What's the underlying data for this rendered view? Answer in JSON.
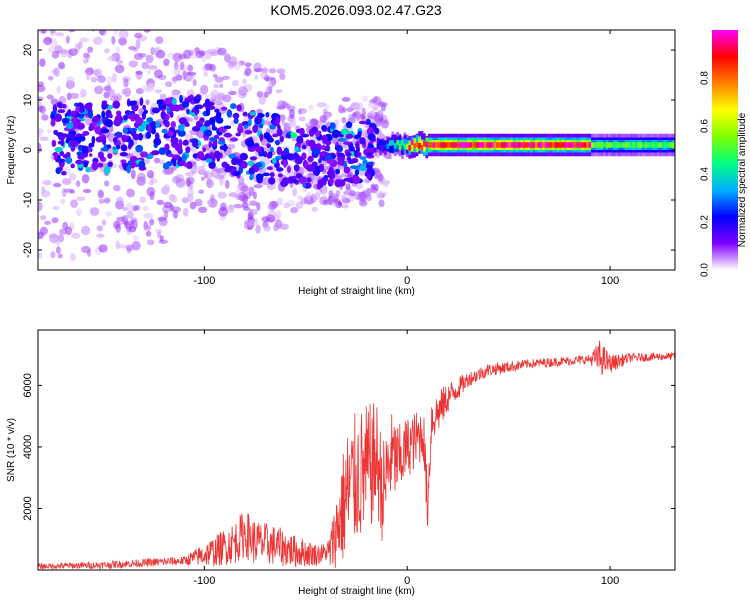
{
  "title": "KOM5.2026.093.02.47.G23",
  "chart_data": [
    {
      "type": "heatmap",
      "title": "KOM5.2026.093.02.47.G23",
      "xlabel": "Height of straight line (km)",
      "ylabel": "Frequency (Hz)",
      "xlim": [
        -182,
        132
      ],
      "ylim": [
        -24,
        24
      ],
      "xticks": [
        -100,
        0,
        100
      ],
      "xtick_labels": [
        "-100",
        "0",
        "100"
      ],
      "yticks": [
        -20,
        -10,
        0,
        10,
        20
      ],
      "ytick_labels": [
        "-20",
        "-10",
        "0",
        "10",
        "20"
      ],
      "colorbar": {
        "label": "Normalized spectral amplitude",
        "range": [
          0,
          1
        ],
        "ticks": [
          0.0,
          0.2,
          0.4,
          0.6,
          0.8
        ],
        "tick_labels": [
          "0.0",
          "0.2",
          "0.4",
          "0.6",
          "0.8"
        ],
        "colormap": [
          "#ffffff",
          "#7f00ff",
          "#0000ff",
          "#00b0ff",
          "#00ff80",
          "#80ff00",
          "#ffff00",
          "#ff8000",
          "#ff0000",
          "#ff00ff"
        ]
      },
      "band": {
        "frequency_hz": 1,
        "x_start": -15,
        "x_end": 132,
        "peak_start": 0,
        "peak_end": 90,
        "peak_amplitude": 0.9,
        "tail_amplitude": 0.5
      },
      "scatter_region": {
        "x_start": -182,
        "x_end": -20,
        "freq_center_trend": [
          [
            -182,
            2
          ],
          [
            -100,
            4
          ],
          [
            -50,
            -2
          ],
          [
            -20,
            0
          ]
        ],
        "spread_hz": 24
      }
    },
    {
      "type": "line",
      "xlabel": "Height of straight line (km)",
      "ylabel": "SNR (10 * v/v)",
      "color": "#ee3333",
      "xlim": [
        -182,
        132
      ],
      "ylim": [
        0,
        7800
      ],
      "xticks": [
        -100,
        0,
        100
      ],
      "xtick_labels": [
        "-100",
        "0",
        "100"
      ],
      "yticks": [
        2000,
        4000,
        6000
      ],
      "ytick_labels": [
        "2000",
        "4000",
        "6000"
      ],
      "envelope": {
        "x": [
          -182,
          -150,
          -110,
          -95,
          -85,
          -80,
          -75,
          -65,
          -55,
          -45,
          -38,
          -34,
          -30,
          -25,
          -20,
          -15,
          -12,
          -8,
          -4,
          0,
          4,
          8,
          10,
          12,
          15,
          20,
          30,
          40,
          60,
          80,
          90,
          95,
          100,
          110,
          132
        ],
        "y": [
          120,
          160,
          300,
          600,
          900,
          1200,
          900,
          800,
          600,
          500,
          600,
          1500,
          2400,
          3000,
          3200,
          3600,
          2500,
          3700,
          3500,
          4000,
          4200,
          4500,
          2000,
          4900,
          5100,
          5600,
          6200,
          6500,
          6700,
          6800,
          6850,
          6900,
          6700,
          6900,
          6950
        ]
      },
      "noise_amplitude": {
        "x": [
          -182,
          -110,
          -95,
          -80,
          -60,
          -40,
          -35,
          -30,
          -20,
          -10,
          0,
          10,
          20,
          30,
          60,
          90,
          95,
          100,
          110,
          132
        ],
        "y": [
          90,
          150,
          500,
          800,
          600,
          300,
          1200,
          2200,
          2200,
          1600,
          1000,
          900,
          500,
          250,
          150,
          150,
          600,
          300,
          150,
          120
        ]
      }
    }
  ]
}
